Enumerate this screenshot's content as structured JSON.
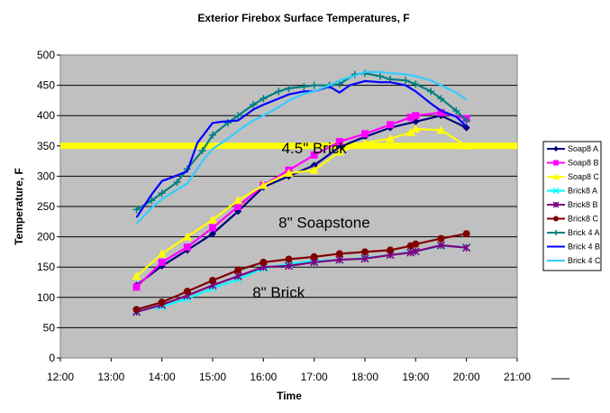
{
  "chart_data": {
    "type": "line",
    "title": "Exterior Firebox Surface Temperatures, F",
    "xlabel": "Time",
    "ylabel": "Temperature, F",
    "xlim": [
      12,
      21
    ],
    "ylim": [
      0,
      500
    ],
    "xticks": [
      "12:00",
      "13:00",
      "14:00",
      "15:00",
      "16:00",
      "17:00",
      "18:00",
      "19:00",
      "20:00",
      "21:00"
    ],
    "yticks": [
      0,
      50,
      100,
      150,
      200,
      250,
      300,
      350,
      400,
      450,
      500
    ],
    "grid": "horizontal",
    "legend_position": "right",
    "reference_line": {
      "y": 350,
      "color": "#ffff00"
    },
    "annotations": [
      {
        "text": "4.5\" Brick",
        "x": 17.0,
        "y": 338
      },
      {
        "text": "8\" Soapstone",
        "x": 17.2,
        "y": 215
      },
      {
        "text": "8\" Brick",
        "x": 16.3,
        "y": 100
      }
    ],
    "series": [
      {
        "name": "Soap8 A",
        "color": "#000080",
        "marker": "diamond",
        "x": [
          13.5,
          14.0,
          14.5,
          15.0,
          15.5,
          16.0,
          16.5,
          17.0,
          17.5,
          18.0,
          18.5,
          19.0,
          19.5,
          20.0
        ],
        "y": [
          120,
          152,
          178,
          205,
          242,
          282,
          300,
          318,
          348,
          365,
          380,
          390,
          400,
          380
        ]
      },
      {
        "name": "Soap8 B",
        "color": "#ff00ff",
        "marker": "square",
        "x": [
          13.5,
          14.0,
          14.5,
          15.0,
          15.5,
          16.0,
          16.5,
          17.0,
          17.5,
          18.0,
          18.5,
          18.9,
          19.0,
          19.5,
          20.0
        ],
        "y": [
          117,
          158,
          183,
          215,
          250,
          285,
          310,
          335,
          357,
          370,
          385,
          397,
          400,
          405,
          395
        ]
      },
      {
        "name": "Soap8 C",
        "color": "#ffff00",
        "marker": "triangle",
        "x": [
          13.5,
          14.0,
          14.5,
          15.0,
          15.5,
          16.0,
          16.5,
          17.0,
          17.5,
          18.0,
          18.5,
          18.9,
          19.0,
          19.5,
          20.0
        ],
        "y": [
          135,
          172,
          200,
          228,
          260,
          285,
          305,
          310,
          340,
          355,
          362,
          372,
          378,
          376,
          350
        ]
      },
      {
        "name": "Brick8 A",
        "color": "#00ffff",
        "marker": "x",
        "x": [
          13.5,
          14.0,
          14.5,
          15.0,
          15.5,
          16.0,
          16.5,
          17.0,
          17.5,
          18.0,
          18.5,
          18.9,
          19.0,
          19.5,
          20.0
        ],
        "y": [
          78,
          85,
          98,
          115,
          130,
          148,
          155,
          160,
          162,
          165,
          170,
          175,
          176,
          185,
          183
        ]
      },
      {
        "name": "Brick8 B",
        "color": "#800080",
        "marker": "star",
        "x": [
          13.5,
          14.0,
          14.5,
          15.0,
          15.5,
          16.0,
          16.5,
          17.0,
          17.5,
          18.0,
          18.5,
          18.9,
          19.0,
          19.5,
          20.0
        ],
        "y": [
          76,
          88,
          103,
          120,
          135,
          150,
          152,
          158,
          162,
          164,
          170,
          174,
          176,
          186,
          182
        ]
      },
      {
        "name": "Brick8 C",
        "color": "#800000",
        "marker": "circle",
        "x": [
          13.5,
          14.0,
          14.5,
          15.0,
          15.5,
          16.0,
          16.5,
          17.0,
          17.5,
          18.0,
          18.5,
          18.9,
          19.0,
          19.5,
          20.0
        ],
        "y": [
          80,
          92,
          110,
          128,
          145,
          158,
          163,
          167,
          172,
          175,
          178,
          185,
          188,
          197,
          205
        ]
      },
      {
        "name": "Brick 4 A",
        "color": "#008080",
        "marker": "plus",
        "x": [
          13.5,
          13.8,
          14.0,
          14.3,
          14.5,
          14.8,
          15.0,
          15.3,
          15.5,
          15.8,
          16.0,
          16.3,
          16.5,
          16.8,
          17.0,
          17.3,
          17.5,
          17.8,
          18.0,
          18.3,
          18.5,
          18.8,
          19.0,
          19.3,
          19.5,
          19.8,
          20.0
        ],
        "y": [
          245,
          260,
          272,
          290,
          312,
          342,
          368,
          388,
          400,
          418,
          428,
          440,
          445,
          448,
          450,
          450,
          452,
          468,
          470,
          465,
          460,
          458,
          452,
          440,
          428,
          408,
          392
        ]
      },
      {
        "name": "Brick 4 B",
        "color": "#0000ff",
        "marker": "none",
        "x": [
          13.5,
          13.8,
          14.0,
          14.2,
          14.5,
          14.7,
          15.0,
          15.2,
          15.5,
          15.8,
          16.0,
          16.3,
          16.5,
          16.8,
          17.0,
          17.3,
          17.5,
          17.7,
          18.0,
          18.3,
          18.5,
          18.8,
          19.0,
          19.3,
          19.5,
          19.8,
          20.0
        ],
        "y": [
          232,
          270,
          292,
          298,
          308,
          355,
          388,
          390,
          392,
          410,
          418,
          428,
          435,
          440,
          440,
          448,
          438,
          450,
          457,
          455,
          455,
          450,
          440,
          420,
          408,
          398,
          382
        ]
      },
      {
        "name": "Brick 4 C",
        "color": "#33ccff",
        "marker": "none",
        "x": [
          13.5,
          13.8,
          14.0,
          14.3,
          14.5,
          14.8,
          15.0,
          15.3,
          15.5,
          15.8,
          16.0,
          16.3,
          16.5,
          16.8,
          17.0,
          17.3,
          17.5,
          17.8,
          18.0,
          18.3,
          18.5,
          18.8,
          19.0,
          19.3,
          19.5,
          19.8,
          20.0
        ],
        "y": [
          222,
          248,
          262,
          278,
          288,
          325,
          345,
          362,
          375,
          392,
          400,
          414,
          425,
          436,
          440,
          450,
          458,
          466,
          472,
          472,
          470,
          468,
          465,
          458,
          450,
          438,
          426
        ]
      }
    ]
  }
}
